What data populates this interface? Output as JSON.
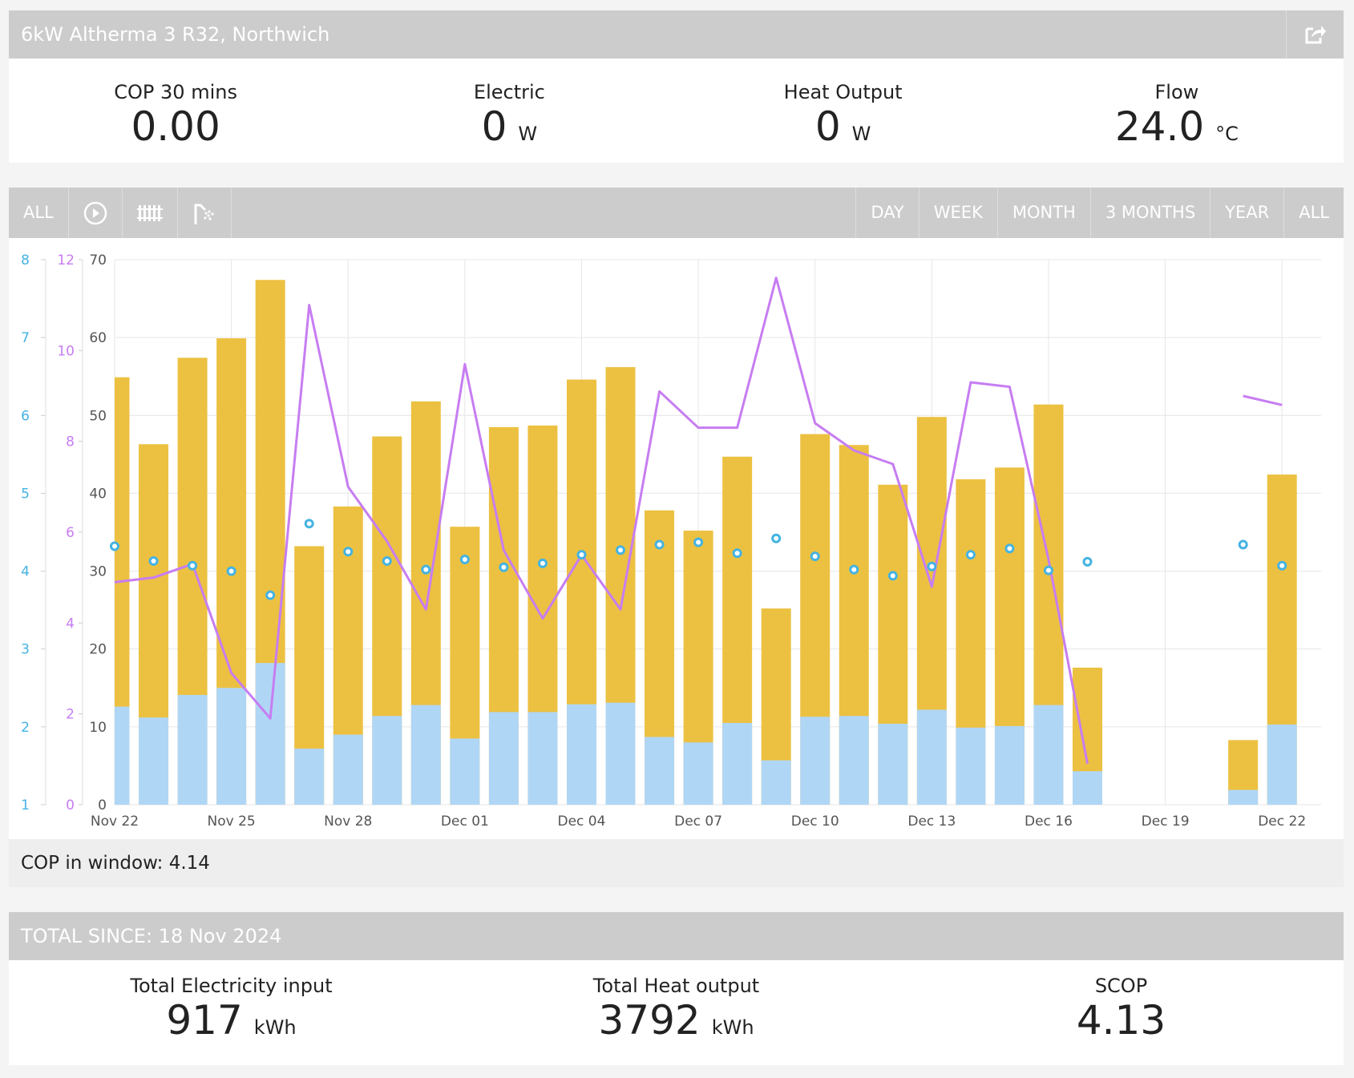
{
  "header": {
    "title": "6kW Altherma 3 R32, Northwich",
    "share_icon": "share-icon"
  },
  "live": [
    {
      "label": "COP 30 mins",
      "value": "0.00",
      "unit": ""
    },
    {
      "label": "Electric",
      "value": "0",
      "unit": "W"
    },
    {
      "label": "Heat Output",
      "value": "0",
      "unit": "W"
    },
    {
      "label": "Flow",
      "value": "24.0",
      "unit": "°C"
    }
  ],
  "toolbar": {
    "mode_all": "ALL",
    "icons": [
      "play-circle-icon",
      "radiator-icon",
      "shower-icon"
    ],
    "ranges": [
      "DAY",
      "WEEK",
      "MONTH",
      "3 MONTHS",
      "YEAR",
      "ALL"
    ]
  },
  "colors": {
    "yellow_bars": "#ecc141",
    "blue_bars": "#b0d6f5",
    "purple_line": "#c77df2",
    "blue_points": "#44b3e2"
  },
  "chart_data": {
    "type": "bar",
    "categories": [
      "Nov 22",
      "Nov 23",
      "Nov 24",
      "Nov 25",
      "Nov 26",
      "Nov 27",
      "Nov 28",
      "Nov 29",
      "Nov 30",
      "Dec 01",
      "Dec 02",
      "Dec 03",
      "Dec 04",
      "Dec 05",
      "Dec 06",
      "Dec 07",
      "Dec 08",
      "Dec 09",
      "Dec 10",
      "Dec 11",
      "Dec 12",
      "Dec 13",
      "Dec 14",
      "Dec 15",
      "Dec 16",
      "Dec 17",
      "Dec 18",
      "Dec 19",
      "Dec 20",
      "Dec 21",
      "Dec 22"
    ],
    "tick_labels": [
      "Nov 22",
      "Nov 25",
      "Nov 28",
      "Dec 01",
      "Dec 04",
      "Dec 07",
      "Dec 10",
      "Dec 13",
      "Dec 16",
      "Dec 19",
      "Dec 22"
    ],
    "series": [
      {
        "type": "bar",
        "axis": "right_inner",
        "values": [
          54.9,
          46.3,
          57.4,
          59.9,
          67.4,
          33.2,
          38.3,
          47.3,
          51.8,
          35.7,
          48.5,
          48.7,
          54.6,
          56.2,
          37.8,
          35.2,
          44.7,
          25.2,
          47.6,
          46.2,
          41.1,
          49.8,
          41.8,
          43.3,
          51.4,
          17.6,
          null,
          null,
          null,
          8.3,
          42.4
        ]
      },
      {
        "type": "bar",
        "axis": "right_inner",
        "values": [
          12.6,
          11.2,
          14.1,
          15.0,
          18.2,
          7.2,
          9.0,
          11.4,
          12.8,
          8.5,
          11.9,
          11.9,
          12.9,
          13.1,
          8.7,
          8.0,
          10.5,
          5.7,
          11.3,
          11.4,
          10.4,
          12.2,
          9.9,
          10.1,
          12.8,
          4.3,
          null,
          null,
          null,
          1.9,
          10.3
        ]
      },
      {
        "type": "line",
        "axis": "middle",
        "values": [
          4.9,
          5.0,
          5.3,
          2.9,
          1.9,
          11.0,
          7.0,
          5.8,
          4.3,
          9.7,
          5.6,
          4.1,
          5.5,
          4.3,
          9.1,
          8.3,
          8.3,
          11.6,
          8.4,
          7.8,
          7.5,
          4.8,
          9.3,
          9.2,
          5.4,
          0.9,
          null,
          null,
          null,
          9.0,
          8.8
        ]
      },
      {
        "type": "scatter",
        "axis": "outer",
        "values": [
          4.32,
          4.13,
          4.07,
          4.0,
          3.69,
          4.61,
          4.25,
          4.13,
          4.02,
          4.15,
          4.05,
          4.1,
          4.21,
          4.27,
          4.34,
          4.37,
          4.23,
          4.42,
          4.19,
          4.02,
          3.94,
          4.06,
          4.21,
          4.29,
          4.01,
          4.12,
          null,
          null,
          null,
          4.34,
          4.07
        ]
      }
    ],
    "axes": {
      "outer": {
        "range": [
          1,
          8
        ],
        "ticks": [
          "1",
          "2",
          "3",
          "4",
          "5",
          "6",
          "7",
          "8"
        ]
      },
      "middle": {
        "range": [
          0,
          12
        ],
        "ticks": [
          "0",
          "2",
          "4",
          "6",
          "8",
          "10",
          "12"
        ]
      },
      "right_inner": {
        "range": [
          0,
          70
        ],
        "ticks": [
          "0",
          "10",
          "20",
          "30",
          "40",
          "50",
          "60",
          "70"
        ]
      }
    },
    "grid": true
  },
  "cop_window": {
    "label": "COP in window:",
    "value": "4.14"
  },
  "totals": {
    "title": "TOTAL SINCE: 18 Nov 2024",
    "items": [
      {
        "label": "Total Electricity input",
        "value": "917",
        "unit": "kWh"
      },
      {
        "label": "Total Heat output",
        "value": "3792",
        "unit": "kWh"
      },
      {
        "label": "SCOP",
        "value": "4.13",
        "unit": ""
      }
    ]
  }
}
